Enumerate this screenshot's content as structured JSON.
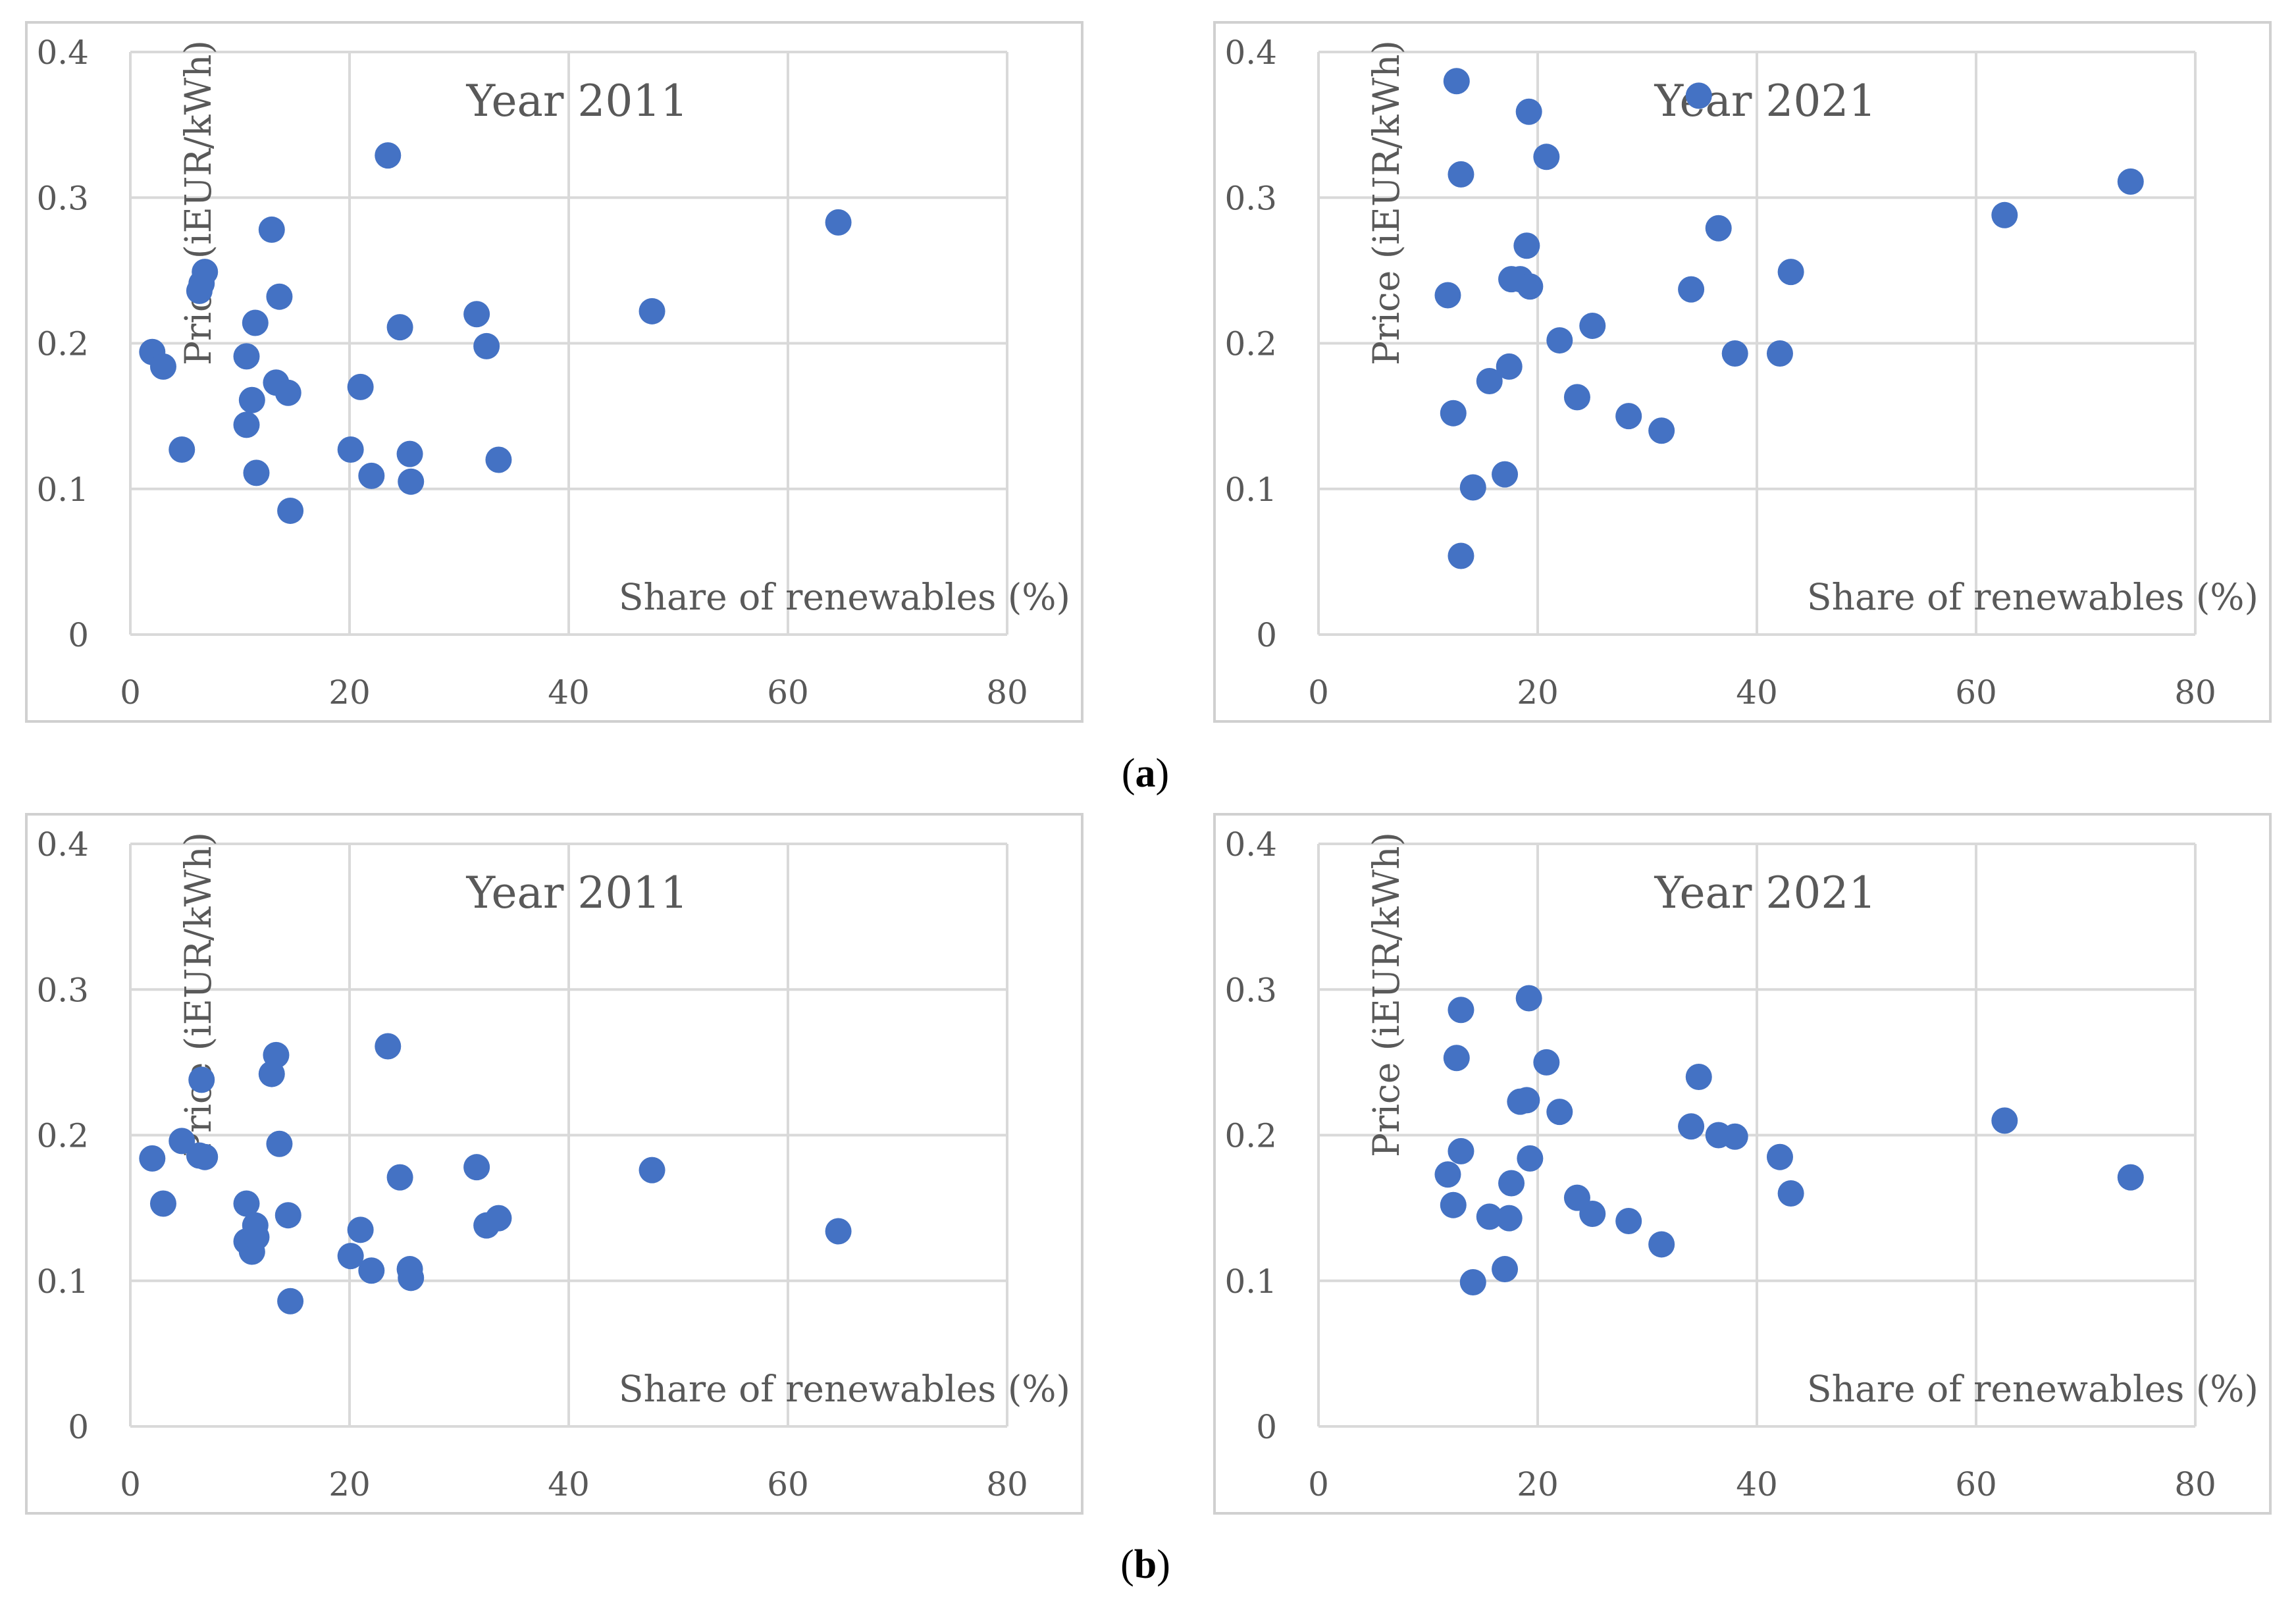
{
  "captions": {
    "a": "a",
    "b": "b",
    "open": "(",
    "close": ")"
  },
  "chart_data": [
    {
      "type": "scatter",
      "title": "Year 2011",
      "xlabel": "Share of renewables (%)",
      "ylabel": "Price (iEUR/kWh)",
      "xlim": [
        0,
        80
      ],
      "ylim": [
        0,
        0.4
      ],
      "xticks": [
        "0",
        "20",
        "40",
        "60",
        "80"
      ],
      "yticks": [
        "0",
        "0.1",
        "0.2",
        "0.3",
        "0.4"
      ],
      "grid": true,
      "color": "#4472C4",
      "points": [
        [
          2,
          0.194
        ],
        [
          3,
          0.184
        ],
        [
          4.7,
          0.127
        ],
        [
          6.3,
          0.236
        ],
        [
          6.5,
          0.241
        ],
        [
          6.8,
          0.249
        ],
        [
          10.6,
          0.191
        ],
        [
          10.6,
          0.144
        ],
        [
          11.1,
          0.161
        ],
        [
          11.4,
          0.214
        ],
        [
          11.5,
          0.111
        ],
        [
          12.9,
          0.278
        ],
        [
          13.3,
          0.173
        ],
        [
          13.6,
          0.232
        ],
        [
          14.4,
          0.166
        ],
        [
          14.6,
          0.085
        ],
        [
          20.1,
          0.127
        ],
        [
          21.0,
          0.17
        ],
        [
          22.0,
          0.109
        ],
        [
          23.5,
          0.329
        ],
        [
          24.6,
          0.211
        ],
        [
          25.5,
          0.124
        ],
        [
          25.6,
          0.105
        ],
        [
          31.6,
          0.22
        ],
        [
          32.5,
          0.198
        ],
        [
          33.6,
          0.12
        ],
        [
          47.6,
          0.222
        ],
        [
          64.6,
          0.283
        ]
      ]
    },
    {
      "type": "scatter",
      "title": "Year 2021",
      "xlabel": "Share of renewables (%)",
      "ylabel": "Price (iEUR/kWh)",
      "xlim": [
        0,
        80
      ],
      "ylim": [
        0,
        0.4
      ],
      "xticks": [
        "0",
        "20",
        "40",
        "60",
        "80"
      ],
      "yticks": [
        "0",
        "0.1",
        "0.2",
        "0.3",
        "0.4"
      ],
      "grid": true,
      "color": "#4472C4",
      "points": [
        [
          11.8,
          0.233
        ],
        [
          12.3,
          0.152
        ],
        [
          12.6,
          0.38
        ],
        [
          13.0,
          0.316
        ],
        [
          13.0,
          0.054
        ],
        [
          14.1,
          0.101
        ],
        [
          15.6,
          0.174
        ],
        [
          17.0,
          0.11
        ],
        [
          17.4,
          0.184
        ],
        [
          17.6,
          0.244
        ],
        [
          18.4,
          0.244
        ],
        [
          19.0,
          0.267
        ],
        [
          19.2,
          0.359
        ],
        [
          19.3,
          0.239
        ],
        [
          20.8,
          0.328
        ],
        [
          22.0,
          0.202
        ],
        [
          23.6,
          0.163
        ],
        [
          25.0,
          0.212
        ],
        [
          28.3,
          0.15
        ],
        [
          31.3,
          0.14
        ],
        [
          34.0,
          0.237
        ],
        [
          34.7,
          0.37
        ],
        [
          36.5,
          0.279
        ],
        [
          38.0,
          0.193
        ],
        [
          42.1,
          0.193
        ],
        [
          43.1,
          0.249
        ],
        [
          62.6,
          0.288
        ],
        [
          74.1,
          0.311
        ]
      ]
    },
    {
      "type": "scatter",
      "title": "Year 2011",
      "xlabel": "Share of renewables (%)",
      "ylabel": "Price (iEUR/kWh)",
      "xlim": [
        0,
        80
      ],
      "ylim": [
        0,
        0.4
      ],
      "xticks": [
        "0",
        "20",
        "40",
        "60",
        "80"
      ],
      "yticks": [
        "0",
        "0.1",
        "0.2",
        "0.3",
        "0.4"
      ],
      "grid": true,
      "color": "#4472C4",
      "points": [
        [
          2,
          0.184
        ],
        [
          3,
          0.153
        ],
        [
          4.7,
          0.196
        ],
        [
          6.3,
          0.186
        ],
        [
          6.5,
          0.238
        ],
        [
          6.8,
          0.185
        ],
        [
          10.6,
          0.153
        ],
        [
          10.6,
          0.127
        ],
        [
          11.1,
          0.12
        ],
        [
          11.4,
          0.138
        ],
        [
          11.5,
          0.13
        ],
        [
          12.9,
          0.242
        ],
        [
          13.3,
          0.255
        ],
        [
          13.6,
          0.194
        ],
        [
          14.4,
          0.145
        ],
        [
          14.6,
          0.086
        ],
        [
          20.1,
          0.117
        ],
        [
          21.0,
          0.135
        ],
        [
          22.0,
          0.107
        ],
        [
          23.5,
          0.261
        ],
        [
          24.6,
          0.171
        ],
        [
          25.5,
          0.108
        ],
        [
          25.6,
          0.102
        ],
        [
          31.6,
          0.178
        ],
        [
          32.5,
          0.138
        ],
        [
          33.6,
          0.143
        ],
        [
          47.6,
          0.176
        ],
        [
          64.6,
          0.134
        ]
      ]
    },
    {
      "type": "scatter",
      "title": "Year 2021",
      "xlabel": "Share of renewables (%)",
      "ylabel": "Price (iEUR/kWh)",
      "xlim": [
        0,
        80
      ],
      "ylim": [
        0,
        0.4
      ],
      "xticks": [
        "0",
        "20",
        "40",
        "60",
        "80"
      ],
      "yticks": [
        "0",
        "0.1",
        "0.2",
        "0.3",
        "0.4"
      ],
      "grid": true,
      "color": "#4472C4",
      "points": [
        [
          11.8,
          0.173
        ],
        [
          12.3,
          0.152
        ],
        [
          12.6,
          0.253
        ],
        [
          13.0,
          0.286
        ],
        [
          13.0,
          0.189
        ],
        [
          14.1,
          0.099
        ],
        [
          15.6,
          0.144
        ],
        [
          17.0,
          0.108
        ],
        [
          17.4,
          0.143
        ],
        [
          17.6,
          0.167
        ],
        [
          18.4,
          0.223
        ],
        [
          19.0,
          0.224
        ],
        [
          19.2,
          0.294
        ],
        [
          19.3,
          0.184
        ],
        [
          20.8,
          0.25
        ],
        [
          22.0,
          0.216
        ],
        [
          23.6,
          0.157
        ],
        [
          25.0,
          0.146
        ],
        [
          28.3,
          0.141
        ],
        [
          31.3,
          0.125
        ],
        [
          34.0,
          0.206
        ],
        [
          34.7,
          0.24
        ],
        [
          36.5,
          0.2
        ],
        [
          38.0,
          0.199
        ],
        [
          42.1,
          0.185
        ],
        [
          43.1,
          0.16
        ],
        [
          62.6,
          0.21
        ],
        [
          74.1,
          0.171
        ]
      ]
    }
  ]
}
